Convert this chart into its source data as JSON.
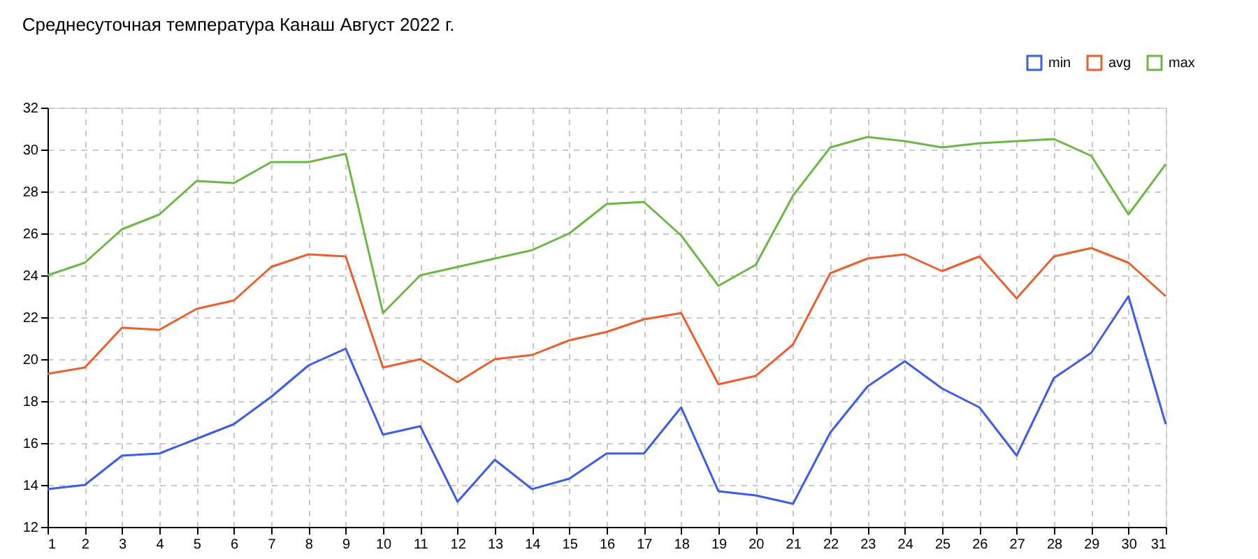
{
  "chart_data": {
    "type": "line",
    "title": "Среднесуточная температура Канаш  Август 2022 г.",
    "x": [
      1,
      2,
      3,
      4,
      5,
      6,
      7,
      8,
      9,
      10,
      11,
      12,
      13,
      14,
      15,
      16,
      17,
      18,
      19,
      20,
      21,
      22,
      23,
      24,
      25,
      26,
      27,
      28,
      29,
      30,
      31
    ],
    "series": [
      {
        "name": "min",
        "color": "#3c5ee6",
        "values": [
          13.8,
          14.0,
          15.4,
          15.5,
          16.2,
          16.9,
          18.2,
          19.7,
          20.5,
          16.4,
          16.8,
          13.2,
          15.2,
          13.8,
          14.3,
          15.5,
          15.5,
          17.7,
          13.7,
          13.5,
          13.1,
          16.5,
          18.7,
          19.9,
          18.6,
          17.7,
          15.4,
          19.1,
          20.3,
          23.0,
          16.9
        ]
      },
      {
        "name": "avg",
        "color": "#e8602c",
        "values": [
          19.3,
          19.6,
          21.5,
          21.4,
          22.4,
          22.8,
          24.4,
          25.0,
          24.9,
          19.6,
          20.0,
          18.9,
          20.0,
          20.2,
          20.9,
          21.3,
          21.9,
          22.2,
          18.8,
          19.2,
          20.7,
          24.1,
          24.8,
          25.0,
          24.2,
          24.9,
          22.9,
          24.9,
          25.3,
          24.6,
          23.0
        ]
      },
      {
        "name": "max",
        "color": "#6bb844",
        "values": [
          24.0,
          24.6,
          26.2,
          26.9,
          28.5,
          28.4,
          29.4,
          29.4,
          29.8,
          22.2,
          24.0,
          24.4,
          24.8,
          25.2,
          26.0,
          27.4,
          27.5,
          25.9,
          23.5,
          24.5,
          27.8,
          30.1,
          30.6,
          30.4,
          30.1,
          30.3,
          30.4,
          30.5,
          29.7,
          26.9,
          29.3
        ]
      }
    ],
    "xlim": [
      1,
      31
    ],
    "xticks": [
      1,
      2,
      3,
      4,
      5,
      6,
      7,
      8,
      9,
      10,
      11,
      12,
      13,
      14,
      15,
      16,
      17,
      18,
      19,
      20,
      21,
      22,
      23,
      24,
      25,
      26,
      27,
      28,
      29,
      30,
      31
    ],
    "ylim": [
      12,
      32
    ],
    "yticks": [
      12,
      14,
      16,
      18,
      20,
      22,
      24,
      26,
      28,
      30,
      32
    ],
    "grid": true,
    "legend": "top right",
    "marker": "none",
    "line_style": "solid"
  }
}
